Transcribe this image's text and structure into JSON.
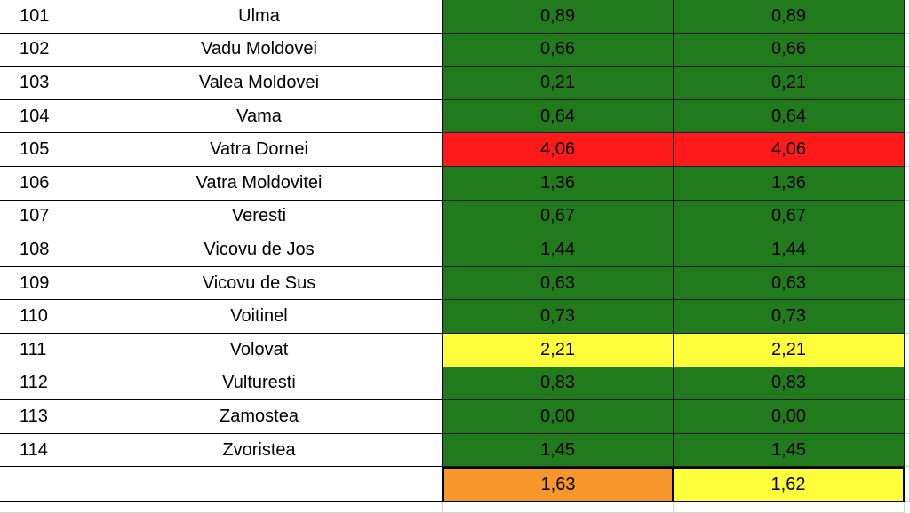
{
  "table": {
    "rows": [
      [
        "101",
        "Ulma",
        "0,89",
        "0,89"
      ],
      [
        "102",
        "Vadu Moldovei",
        "0,66",
        "0,66"
      ],
      [
        "103",
        "Valea Moldovei",
        "0,21",
        "0,21"
      ],
      [
        "104",
        "Vama",
        "0,64",
        "0,64"
      ],
      [
        "105",
        "Vatra Dornei",
        "4,06",
        "4,06"
      ],
      [
        "106",
        "Vatra Moldovitei",
        "1,36",
        "1,36"
      ],
      [
        "107",
        "Veresti",
        "0,67",
        "0,67"
      ],
      [
        "108",
        "Vicovu de Jos",
        "1,44",
        "1,44"
      ],
      [
        "109",
        "Vicovu de Sus",
        "0,63",
        "0,63"
      ],
      [
        "110",
        "Voitinel",
        "0,73",
        "0,73"
      ],
      [
        "111",
        "Volovat",
        "2,21",
        "2,21"
      ],
      [
        "112",
        "Vulturesti",
        "0,83",
        "0,83"
      ],
      [
        "113",
        "Zamostea",
        "0,00",
        "0,00"
      ],
      [
        "114",
        "Zvoristea",
        "1,45",
        "1,45"
      ]
    ],
    "row_fills": [
      "#217a1b",
      "#217a1b",
      "#217a1b",
      "#217a1b",
      "#ff1a1a",
      "#217a1b",
      "#217a1b",
      "#217a1b",
      "#217a1b",
      "#217a1b",
      "#ffff3c",
      "#217a1b",
      "#217a1b",
      "#217a1b"
    ],
    "total": [
      "1,63",
      "1,62"
    ],
    "total_fills": [
      "#f7962a",
      "#ffff3c"
    ]
  }
}
